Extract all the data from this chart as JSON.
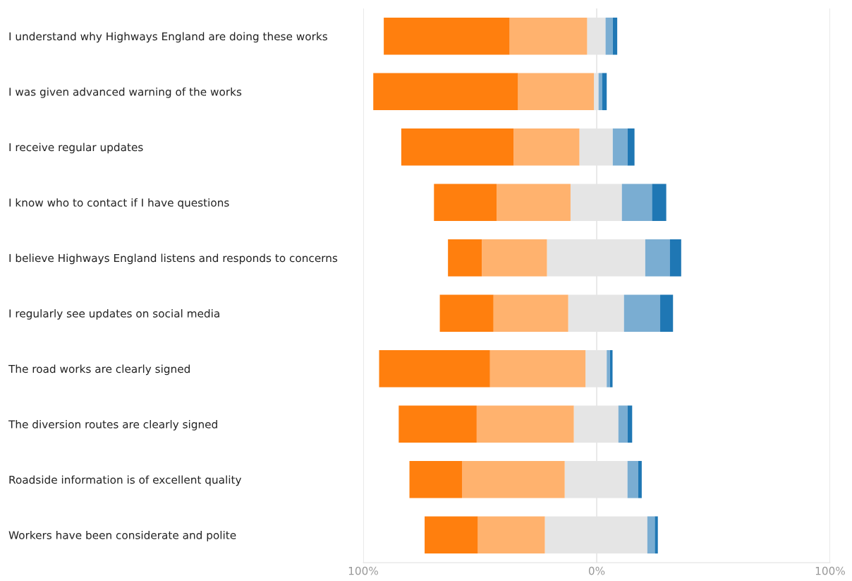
{
  "chart_data": {
    "type": "bar",
    "orientation": "horizontal",
    "stacked": true,
    "categories": [
      "I understand why Highways England are doing these works",
      "I was given advanced warning of the works",
      "I receive regular updates",
      "I know who to contact if I have questions",
      "I believe Highways England listens and responds to concerns",
      "I regularly see updates on social media",
      "The road works are clearly signed",
      "The diversion routes are clearly signed",
      "Roadside information is of excellent quality",
      "Workers have been considerate and polite"
    ],
    "series": [
      {
        "color": "#e5e5e5",
        "values": [
          -4.1,
          -1.2,
          -7.4,
          -11.2,
          -21.3,
          -12.2,
          -4.8,
          -9.8,
          -13.7,
          -22.2
        ]
      },
      {
        "color": "#ffb26e",
        "values": [
          -33.2,
          -32.5,
          -28.2,
          -31.7,
          -27.9,
          -32.0,
          -40.9,
          -41.6,
          -44.0,
          -28.7
        ]
      },
      {
        "color": "#ff7f0e",
        "values": [
          -53.9,
          -62.0,
          -48.1,
          -26.8,
          -14.5,
          -23.0,
          -47.5,
          -33.4,
          -22.5,
          -22.8
        ]
      },
      {
        "color": "#e5e5e5",
        "values": [
          3.8,
          0.8,
          6.9,
          10.8,
          20.8,
          11.7,
          4.3,
          9.3,
          13.2,
          21.7
        ]
      },
      {
        "color": "#7aadd2",
        "values": [
          3.1,
          1.5,
          6.3,
          12.9,
          10.5,
          15.5,
          1.4,
          3.9,
          4.6,
          3.2
        ]
      },
      {
        "color": "#1f77b4",
        "values": [
          1.9,
          2.0,
          3.0,
          6.1,
          4.9,
          5.5,
          1.1,
          2.0,
          1.5,
          1.3
        ]
      }
    ],
    "xlim": [
      -100,
      100
    ],
    "xticks": [
      {
        "value": -100,
        "label": "100%"
      },
      {
        "value": 0,
        "label": "0%"
      },
      {
        "value": 100,
        "label": "100%"
      }
    ],
    "grid": "x"
  }
}
